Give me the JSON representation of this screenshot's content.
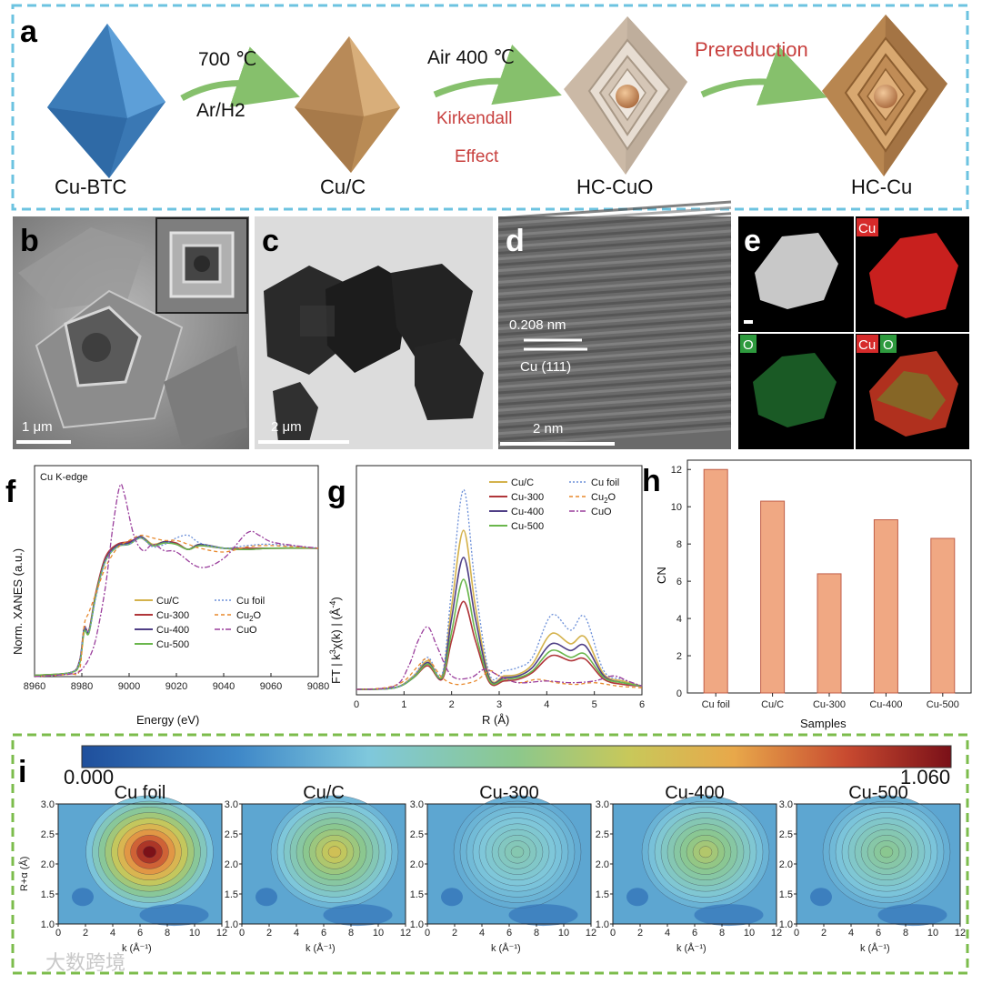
{
  "panel_labels": {
    "a": "a",
    "b": "b",
    "c": "c",
    "d": "d",
    "e": "e",
    "f": "f",
    "g": "g",
    "h": "h",
    "i": "i"
  },
  "schematic": {
    "stages": [
      "Cu-BTC",
      "Cu/C",
      "HC-CuO",
      "HC-Cu"
    ],
    "step1_top": "700 ℃",
    "step1_bottom": "Ar/H2",
    "step2_top": "Air  400 ℃",
    "step2_red1": "Kirkendall",
    "step2_red2": "Effect",
    "step3": "Prereduction",
    "colors": {
      "octahedron_blue": "#4a8cc8",
      "copper": "#c89a64",
      "hollow": "#cbb9a6",
      "arrow": "#86c06c",
      "dash_border": "#6cc3e0"
    }
  },
  "micrographs": {
    "b_scale": "1 μm",
    "c_scale": "2 μm",
    "d_spacing": "0.208 nm",
    "d_plane": "Cu (111)",
    "d_scale": "2 nm",
    "e_labels": [
      "Cu",
      "O",
      "Cu",
      "O"
    ]
  },
  "colors": {
    "cuc": "#d4b24c",
    "cu300": "#b0363a",
    "cu400": "#4f3f86",
    "cu500": "#6ab64c",
    "cufoil": "#6b8fd8",
    "cu2o": "#e8892c",
    "cuo": "#9a3e9c",
    "bar": "#f0a883",
    "bar_edge": "#c05e48"
  },
  "chart_data": [
    {
      "type": "line",
      "panel": "f",
      "annotation": "Cu K-edge",
      "xlabel": "Energy (eV)",
      "ylabel": "Norm. XANES (a.u.)",
      "xlim": [
        8960,
        9080
      ],
      "xticks": [
        "8960",
        "8980",
        "9000",
        "9020",
        "9040",
        "9060",
        "9080"
      ],
      "legend": [
        "Cu/C",
        "Cu-300",
        "Cu-400",
        "Cu-500",
        "Cu foil",
        "Cu2O",
        "CuO"
      ],
      "legend_text": {
        "cu2o_pre": "Cu",
        "cu2o_sub": "2",
        "cu2o_post": "O"
      },
      "series": [
        {
          "name": "Cu/C",
          "x": [
            8960,
            8975,
            8979,
            8981,
            8983,
            8986,
            8990,
            8995,
            9000,
            9005,
            9010,
            9015,
            9020,
            9025,
            9030,
            9040,
            9050,
            9060,
            9080
          ],
          "y": [
            0.01,
            0.03,
            0.1,
            0.36,
            0.34,
            0.65,
            0.92,
            1.02,
            1.04,
            1.09,
            1.03,
            1.05,
            1.03,
            0.99,
            1.03,
            1.0,
            0.99,
            1.0,
            1.0
          ]
        },
        {
          "name": "Cu-300",
          "x": [
            8960,
            8975,
            8979,
            8981,
            8983,
            8986,
            8990,
            8995,
            9000,
            9005,
            9010,
            9015,
            9020,
            9025,
            9030,
            9040,
            9050,
            9060,
            9080
          ],
          "y": [
            0.01,
            0.03,
            0.12,
            0.38,
            0.36,
            0.66,
            0.93,
            1.03,
            1.05,
            1.08,
            1.02,
            1.05,
            1.04,
            0.99,
            1.02,
            1.0,
            1.0,
            1.0,
            1.0
          ]
        },
        {
          "name": "Cu-400",
          "x": [
            8960,
            8975,
            8979,
            8981,
            8983,
            8986,
            8990,
            8995,
            9000,
            9005,
            9010,
            9015,
            9020,
            9025,
            9030,
            9040,
            9050,
            9060,
            9080
          ],
          "y": [
            0.01,
            0.03,
            0.11,
            0.37,
            0.35,
            0.64,
            0.91,
            1.02,
            1.04,
            1.09,
            1.02,
            1.05,
            1.03,
            0.99,
            1.03,
            1.0,
            0.99,
            1.0,
            1.0
          ]
        },
        {
          "name": "Cu-500",
          "x": [
            8960,
            8975,
            8979,
            8981,
            8983,
            8986,
            8990,
            8995,
            9000,
            9005,
            9010,
            9015,
            9020,
            9025,
            9030,
            9040,
            9050,
            9060,
            9080
          ],
          "y": [
            0.01,
            0.03,
            0.1,
            0.35,
            0.34,
            0.64,
            0.9,
            1.01,
            1.03,
            1.08,
            1.02,
            1.04,
            1.03,
            0.99,
            1.02,
            1.0,
            0.99,
            1.0,
            1.0
          ]
        },
        {
          "name": "Cu foil",
          "x": [
            8960,
            8975,
            8979,
            8981,
            8983,
            8986,
            8990,
            8995,
            9000,
            9005,
            9010,
            9015,
            9020,
            9025,
            9030,
            9040,
            9050,
            9060,
            9080
          ],
          "y": [
            0.0,
            0.03,
            0.12,
            0.38,
            0.35,
            0.62,
            0.9,
            1.01,
            1.03,
            1.08,
            1.01,
            1.03,
            1.08,
            1.1,
            1.04,
            1.0,
            1.02,
            1.03,
            1.0
          ]
        },
        {
          "name": "Cu2O",
          "x": [
            8960,
            8975,
            8979,
            8981,
            8983,
            8986,
            8990,
            8995,
            9000,
            9005,
            9010,
            9015,
            9020,
            9025,
            9030,
            9040,
            9050,
            9060,
            9080
          ],
          "y": [
            0.0,
            0.02,
            0.05,
            0.4,
            0.5,
            0.65,
            0.85,
            1.0,
            1.06,
            1.1,
            1.08,
            1.06,
            1.06,
            1.03,
            1.0,
            0.97,
            1.01,
            1.02,
            1.0
          ]
        },
        {
          "name": "CuO",
          "x": [
            8960,
            8975,
            8979,
            8981,
            8983,
            8986,
            8990,
            8993,
            8996,
            8998,
            9002,
            9006,
            9010,
            9015,
            9020,
            9030,
            9040,
            9050,
            9055,
            9060,
            9070,
            9080
          ],
          "y": [
            0.0,
            0.02,
            0.04,
            0.08,
            0.14,
            0.3,
            0.7,
            1.15,
            1.48,
            1.42,
            1.1,
            0.98,
            1.03,
            0.98,
            0.97,
            0.85,
            0.92,
            1.12,
            1.1,
            1.05,
            1.02,
            1.0
          ]
        }
      ]
    },
    {
      "type": "line",
      "panel": "g",
      "xlabel": "R (Å)",
      "ylabel": "FT | k³χ(k) | (Å⁻⁴)",
      "ylabel_parts": {
        "a": "FT | k",
        "b": "3",
        "c": "χ(k) | (Å",
        "d": "-4",
        "e": ")"
      },
      "xlim": [
        0,
        6
      ],
      "xticks": [
        "0",
        "1",
        "2",
        "3",
        "4",
        "5",
        "6"
      ],
      "legend": [
        "Cu/C",
        "Cu-300",
        "Cu-400",
        "Cu-500",
        "Cu foil",
        "Cu2O",
        "CuO"
      ],
      "series": [
        {
          "name": "Cu/C",
          "x": [
            0,
            0.8,
            1.2,
            1.5,
            1.8,
            2.0,
            2.25,
            2.5,
            2.8,
            3.1,
            3.4,
            3.7,
            4.1,
            4.5,
            4.8,
            5.2,
            5.6,
            6
          ],
          "y": [
            0.1,
            0.2,
            0.9,
            1.8,
            0.9,
            5.0,
            9.5,
            5.0,
            0.8,
            0.9,
            1.0,
            1.6,
            3.4,
            2.8,
            3.2,
            1.0,
            0.6,
            0.3
          ]
        },
        {
          "name": "Cu-300",
          "x": [
            0,
            0.8,
            1.2,
            1.5,
            1.8,
            2.0,
            2.25,
            2.5,
            2.8,
            3.1,
            3.4,
            3.7,
            4.1,
            4.5,
            4.8,
            5.2,
            5.6,
            6
          ],
          "y": [
            0.1,
            0.2,
            0.8,
            1.5,
            0.7,
            3.0,
            5.3,
            3.0,
            0.5,
            0.6,
            0.7,
            1.1,
            2.1,
            1.8,
            1.9,
            0.7,
            0.4,
            0.3
          ]
        },
        {
          "name": "Cu-400",
          "x": [
            0,
            0.8,
            1.2,
            1.5,
            1.8,
            2.0,
            2.25,
            2.5,
            2.8,
            3.1,
            3.4,
            3.7,
            4.1,
            4.5,
            4.8,
            5.2,
            5.6,
            6
          ],
          "y": [
            0.1,
            0.2,
            0.8,
            1.7,
            0.8,
            4.3,
            7.9,
            4.3,
            0.7,
            0.8,
            0.9,
            1.4,
            2.8,
            2.4,
            2.7,
            0.9,
            0.5,
            0.3
          ]
        },
        {
          "name": "Cu-500",
          "x": [
            0,
            0.8,
            1.2,
            1.5,
            1.8,
            2.0,
            2.25,
            2.5,
            2.8,
            3.1,
            3.4,
            3.7,
            4.1,
            4.5,
            4.8,
            5.2,
            5.6,
            6
          ],
          "y": [
            0.1,
            0.2,
            0.8,
            1.6,
            0.8,
            3.5,
            6.6,
            3.5,
            0.6,
            0.7,
            0.8,
            1.2,
            2.4,
            2.0,
            2.2,
            0.8,
            0.5,
            0.3
          ]
        },
        {
          "name": "Cu foil",
          "x": [
            0,
            0.8,
            1.2,
            1.5,
            1.8,
            2.0,
            2.25,
            2.5,
            2.8,
            3.1,
            3.4,
            3.7,
            4.1,
            4.5,
            4.8,
            5.2,
            5.6,
            6
          ],
          "y": [
            0.1,
            0.2,
            0.9,
            2.0,
            1.0,
            6.0,
            11.9,
            6.2,
            1.0,
            1.2,
            1.4,
            2.0,
            4.5,
            3.6,
            4.4,
            1.2,
            0.7,
            0.3
          ]
        },
        {
          "name": "Cu2O",
          "x": [
            0,
            0.6,
            1.0,
            1.3,
            1.5,
            1.8,
            2.1,
            2.5,
            2.8,
            3.0,
            3.4,
            3.8,
            4.2,
            4.6,
            5.0,
            5.5,
            6
          ],
          "y": [
            0.1,
            0.2,
            0.6,
            1.5,
            1.9,
            0.8,
            0.4,
            0.6,
            1.2,
            0.9,
            0.5,
            0.7,
            0.5,
            0.4,
            0.5,
            0.3,
            0.2
          ]
        },
        {
          "name": "CuO",
          "x": [
            0,
            0.8,
            1.1,
            1.3,
            1.5,
            1.7,
            2.0,
            2.4,
            2.7,
            3.0,
            3.4,
            4.0,
            4.5,
            5.0,
            5.4,
            5.7,
            6
          ],
          "y": [
            0.1,
            0.3,
            1.5,
            3.0,
            3.8,
            2.6,
            0.9,
            0.8,
            1.3,
            0.9,
            0.5,
            0.6,
            0.5,
            0.6,
            0.9,
            0.6,
            0.3
          ]
        }
      ]
    },
    {
      "type": "bar",
      "panel": "h",
      "title": "",
      "xlabel": "Samples",
      "ylabel": "CN",
      "ylim": [
        0,
        12.5
      ],
      "yticks": [
        "0",
        "2",
        "4",
        "6",
        "8",
        "10",
        "12"
      ],
      "categories": [
        "Cu foil",
        "Cu/C",
        "Cu-300",
        "Cu-400",
        "Cu-500"
      ],
      "values": [
        12.0,
        10.3,
        6.4,
        9.3,
        8.3
      ]
    },
    {
      "type": "heatmap",
      "panel": "i",
      "colorbar_min": "0.000",
      "colorbar_max": "1.060",
      "xlabel": "k (Å⁻¹)",
      "ylabel": "R+α (Å)",
      "xlim": [
        0,
        12
      ],
      "ylim": [
        1.0,
        3.0
      ],
      "xticks": [
        "0",
        "2",
        "4",
        "6",
        "8",
        "10",
        "12"
      ],
      "yticks": [
        "1.0",
        "1.5",
        "2.0",
        "2.5",
        "3.0"
      ],
      "maps": [
        {
          "name": "Cu foil",
          "peak_k": 6.7,
          "peak_R": 2.2,
          "peak_value": 1.06
        },
        {
          "name": "Cu/C",
          "peak_k": 6.8,
          "peak_R": 2.2,
          "peak_value": 0.7
        },
        {
          "name": "Cu-300",
          "peak_k": 6.6,
          "peak_R": 2.2,
          "peak_value": 0.45
        },
        {
          "name": "Cu-400",
          "peak_k": 6.8,
          "peak_R": 2.2,
          "peak_value": 0.62
        },
        {
          "name": "Cu-500",
          "peak_k": 6.6,
          "peak_R": 2.2,
          "peak_value": 0.52
        }
      ]
    }
  ],
  "watermark": "大数跨境"
}
